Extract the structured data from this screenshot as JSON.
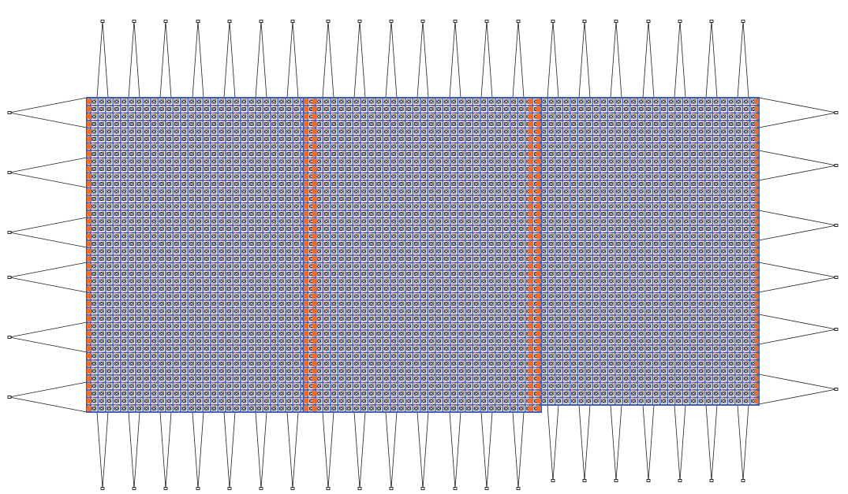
{
  "diagram": {
    "blocks": 3,
    "top_pins": 21,
    "bottom_pins": 21,
    "left_pins": 6,
    "right_pins": 6
  },
  "colors": {
    "routing_blue": "#3d5cb8",
    "edge_orange": "#f26a2a",
    "mark_yellow": "#f5b81c",
    "mark_pink": "#c86bc8",
    "cell_dark": "#2a2a3a",
    "wire": "#222222"
  }
}
